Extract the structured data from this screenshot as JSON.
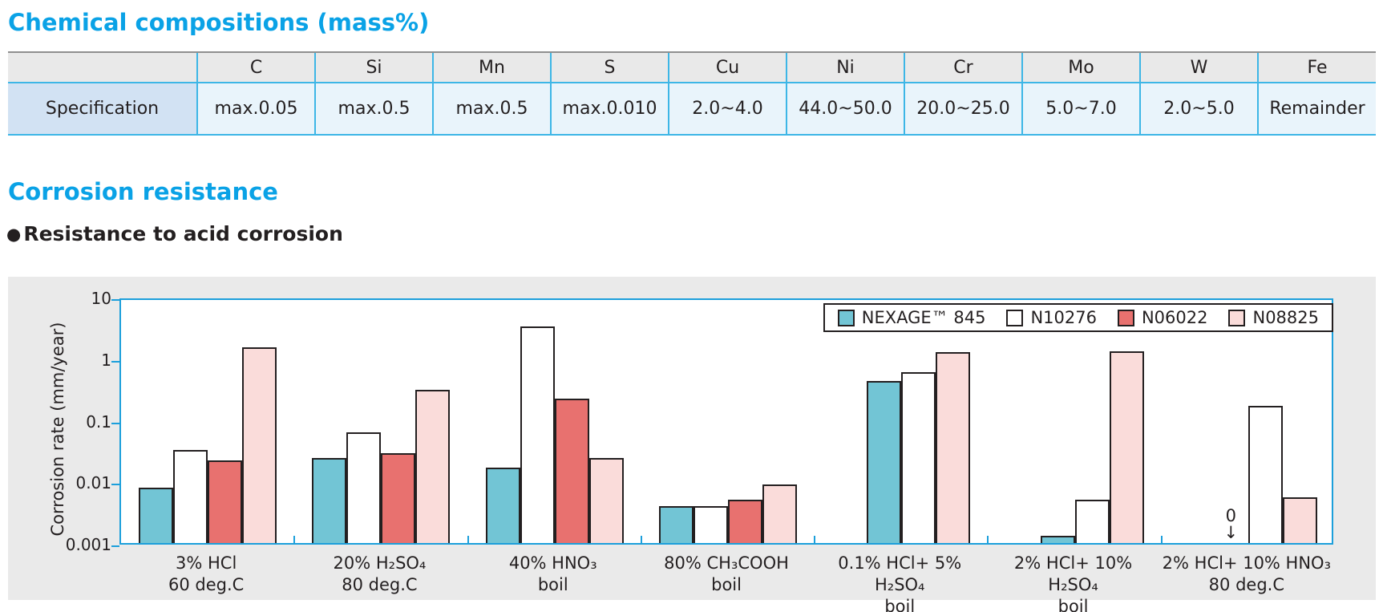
{
  "page": {
    "section1_title": "Chemical compositions (mass%)",
    "section2_title": "Corrosion resistance",
    "subsection_bullet": "●",
    "subsection_title": "Resistance to acid corrosion"
  },
  "colors": {
    "heading_blue": "#0aa2e6",
    "table_border_cyan": "#3db6e6",
    "table_top_border_gray": "#8f8f8f",
    "table_header_bg": "#e9e9e9",
    "table_rowhead_bg": "#d2e2f3",
    "table_cell_bg": "#e9f4fb",
    "panel_bg": "#eaeaea",
    "plot_frame_cyan": "#1c9fdb",
    "bar_border": "#231f20"
  },
  "composition_table": {
    "row_header": "Specification",
    "columns": [
      "C",
      "Si",
      "Mn",
      "S",
      "Cu",
      "Ni",
      "Cr",
      "Mo",
      "W",
      "Fe"
    ],
    "values": [
      "max.0.05",
      "max.0.5",
      "max.0.5",
      "max.0.010",
      "2.0~4.0",
      "44.0~50.0",
      "20.0~25.0",
      "5.0~7.0",
      "2.0~5.0",
      "Remainder"
    ]
  },
  "chart_data": {
    "type": "bar",
    "scale": "log",
    "title": "",
    "xlabel": "",
    "ylabel": "Corrosion rate (mm/year)",
    "ylim": [
      0.001,
      10
    ],
    "yticks": [
      10,
      1,
      0.1,
      0.01,
      0.001
    ],
    "ytick_labels": [
      "10",
      "1",
      "0.1",
      "0.01",
      "0.001"
    ],
    "grid": false,
    "legend_position": "top-right",
    "series_names": [
      "NEXAGE™ 845",
      "N10276",
      "N06022",
      "N08825"
    ],
    "series_colors": [
      "#72c5d5",
      "#ffffff",
      "#e8716f",
      "#fadcda"
    ],
    "zero_annotation": {
      "label": "0",
      "arrow": "↓"
    },
    "groups": [
      {
        "label_line1": "3% HCl",
        "label_line2": "60 deg.C",
        "values": [
          0.008,
          0.033,
          0.022,
          1.5
        ]
      },
      {
        "label_line1": "20% H₂SO₄",
        "label_line2": "80 deg.C",
        "values": [
          0.024,
          0.062,
          0.029,
          0.31
        ]
      },
      {
        "label_line1": "40% HNO₃",
        "label_line2": "boil",
        "values": [
          0.017,
          3.3,
          0.22,
          0.024
        ]
      },
      {
        "label_line1": "80% CH₃COOH",
        "label_line2": "boil",
        "values": [
          0.004,
          0.004,
          0.005,
          0.009
        ]
      },
      {
        "label_line1": "0.1% HCl+ 5% H₂SO₄",
        "label_line2": "boil",
        "values": [
          0.43,
          0.6,
          null,
          1.25
        ]
      },
      {
        "label_line1": "2% HCl+ 10% H₂SO₄",
        "label_line2": "boil",
        "values": [
          0.0013,
          0.005,
          null,
          1.3
        ]
      },
      {
        "label_line1": "2% HCl+ 10% HNO₃",
        "label_line2": "80 deg.C",
        "values": [
          0,
          0.17,
          null,
          0.0055
        ]
      }
    ]
  }
}
